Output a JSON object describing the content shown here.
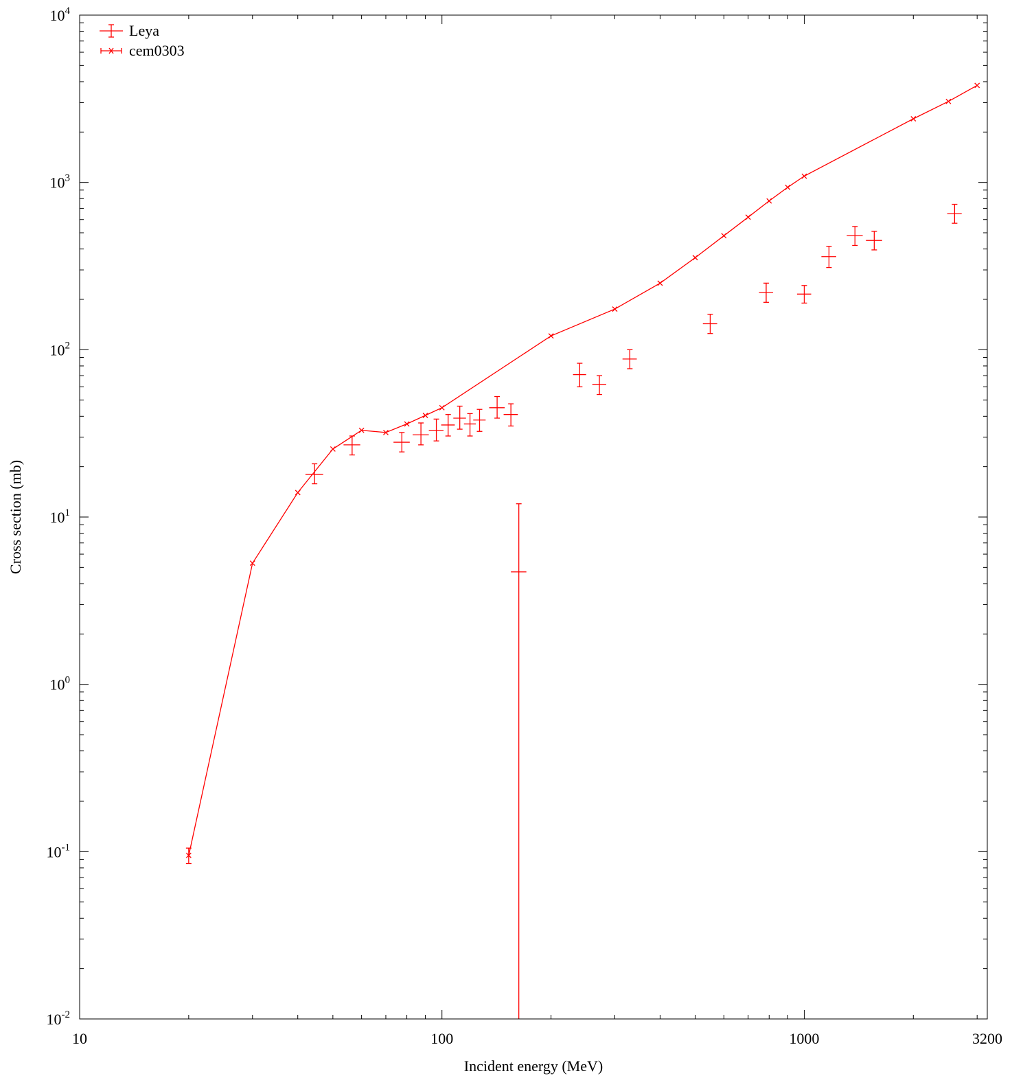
{
  "chart_data": {
    "type": "scatter",
    "title": "",
    "xlabel": "Incident energy (MeV)",
    "ylabel": "Cross section (mb)",
    "xscale": "log",
    "yscale": "log",
    "xlim": [
      10,
      3200
    ],
    "ylim": [
      0.01,
      10000
    ],
    "x_ticks": [
      {
        "value": 10,
        "label": "10"
      },
      {
        "value": 100,
        "label": "100"
      },
      {
        "value": 1000,
        "label": "1000"
      },
      {
        "value": 3200,
        "label": "3200"
      }
    ],
    "y_ticks": [
      {
        "value": 0.01,
        "base": "10",
        "exp": "-2"
      },
      {
        "value": 0.1,
        "base": "10",
        "exp": "-1"
      },
      {
        "value": 1,
        "base": "10",
        "exp": "0"
      },
      {
        "value": 10,
        "base": "10",
        "exp": "1"
      },
      {
        "value": 100,
        "base": "10",
        "exp": "2"
      },
      {
        "value": 1000,
        "base": "10",
        "exp": "3"
      },
      {
        "value": 10000,
        "base": "10",
        "exp": "4"
      }
    ],
    "grid": false,
    "legend_position": "top-left",
    "color": "#ff0000",
    "series": [
      {
        "name": "Leya",
        "style": "points-xerr-yerr",
        "points": [
          {
            "x": 44.5,
            "xlo": 42.0,
            "xhi": 47.0,
            "y": 18.0,
            "ylo": 15.8,
            "yhi": 20.8
          },
          {
            "x": 56.5,
            "xlo": 53.5,
            "xhi": 59.5,
            "y": 27.0,
            "ylo": 23.5,
            "yhi": 30.5
          },
          {
            "x": 77.5,
            "xlo": 73.5,
            "xhi": 81.5,
            "y": 28.0,
            "ylo": 24.5,
            "yhi": 32.0
          },
          {
            "x": 87.5,
            "xlo": 83.0,
            "xhi": 92.0,
            "y": 31.0,
            "ylo": 27.0,
            "yhi": 36.5
          },
          {
            "x": 96.5,
            "xlo": 92.0,
            "xhi": 101.0,
            "y": 33.0,
            "ylo": 28.5,
            "yhi": 38.5
          },
          {
            "x": 104.0,
            "xlo": 99.5,
            "xhi": 108.5,
            "y": 35.5,
            "ylo": 30.5,
            "yhi": 41.0
          },
          {
            "x": 112.0,
            "xlo": 107.5,
            "xhi": 116.5,
            "y": 39.0,
            "ylo": 33.5,
            "yhi": 46.0
          },
          {
            "x": 119.5,
            "xlo": 115.0,
            "xhi": 124.0,
            "y": 36.0,
            "ylo": 30.5,
            "yhi": 41.5
          },
          {
            "x": 127.0,
            "xlo": 122.0,
            "xhi": 132.0,
            "y": 38.0,
            "ylo": 32.5,
            "yhi": 44.0
          },
          {
            "x": 142.0,
            "xlo": 135.0,
            "xhi": 149.0,
            "y": 45.0,
            "ylo": 39.0,
            "yhi": 52.5
          },
          {
            "x": 155.0,
            "xlo": 148.0,
            "xhi": 162.0,
            "y": 41.0,
            "ylo": 35.0,
            "yhi": 47.5
          },
          {
            "x": 163.0,
            "xlo": 155.0,
            "xhi": 171.0,
            "y": 4.7,
            "ylo": 0.01,
            "yhi": 12.0
          },
          {
            "x": 240.0,
            "xlo": 230.0,
            "xhi": 250.0,
            "y": 71.0,
            "ylo": 60.0,
            "yhi": 83.0
          },
          {
            "x": 272.0,
            "xlo": 260.0,
            "xhi": 284.0,
            "y": 62.0,
            "ylo": 54.0,
            "yhi": 70.0
          },
          {
            "x": 330.0,
            "xlo": 315.0,
            "xhi": 345.0,
            "y": 88.0,
            "ylo": 77.0,
            "yhi": 100.0
          },
          {
            "x": 550.0,
            "xlo": 525.0,
            "xhi": 575.0,
            "y": 143.0,
            "ylo": 125.0,
            "yhi": 163.0
          },
          {
            "x": 785.0,
            "xlo": 750.0,
            "xhi": 820.0,
            "y": 220.0,
            "ylo": 192.0,
            "yhi": 250.0
          },
          {
            "x": 1000.0,
            "xlo": 955.0,
            "xhi": 1045.0,
            "y": 215.0,
            "ylo": 190.0,
            "yhi": 242.0
          },
          {
            "x": 1170.0,
            "xlo": 1115.0,
            "xhi": 1225.0,
            "y": 360.0,
            "ylo": 310.0,
            "yhi": 415.0
          },
          {
            "x": 1380.0,
            "xlo": 1310.0,
            "xhi": 1450.0,
            "y": 480.0,
            "ylo": 420.0,
            "yhi": 545.0
          },
          {
            "x": 1560.0,
            "xlo": 1480.0,
            "xhi": 1640.0,
            "y": 450.0,
            "ylo": 395.0,
            "yhi": 510.0
          },
          {
            "x": 2600.0,
            "xlo": 2480.0,
            "xhi": 2720.0,
            "y": 650.0,
            "ylo": 570.0,
            "yhi": 740.0
          }
        ]
      },
      {
        "name": "cem0303",
        "style": "linespoints",
        "points": [
          {
            "x": 20.0,
            "y": 0.095,
            "ylo": 0.085,
            "yhi": 0.105
          },
          {
            "x": 30.0,
            "y": 5.3
          },
          {
            "x": 40.0,
            "y": 14.0
          },
          {
            "x": 50.0,
            "y": 25.5
          },
          {
            "x": 60.0,
            "y": 33.0
          },
          {
            "x": 70.0,
            "y": 32.0
          },
          {
            "x": 80.0,
            "y": 36.0
          },
          {
            "x": 90.0,
            "y": 40.5
          },
          {
            "x": 100.0,
            "y": 45.0
          },
          {
            "x": 200.0,
            "y": 121.0
          },
          {
            "x": 300.0,
            "y": 175.0
          },
          {
            "x": 400.0,
            "y": 250.0
          },
          {
            "x": 500.0,
            "y": 355.0
          },
          {
            "x": 600.0,
            "y": 480.0
          },
          {
            "x": 700.0,
            "y": 620.0
          },
          {
            "x": 800.0,
            "y": 775.0
          },
          {
            "x": 900.0,
            "y": 935.0
          },
          {
            "x": 1000.0,
            "y": 1090.0
          },
          {
            "x": 2000.0,
            "y": 2400.0
          },
          {
            "x": 2500.0,
            "y": 3050.0
          },
          {
            "x": 3000.0,
            "y": 3800.0
          }
        ]
      }
    ]
  }
}
